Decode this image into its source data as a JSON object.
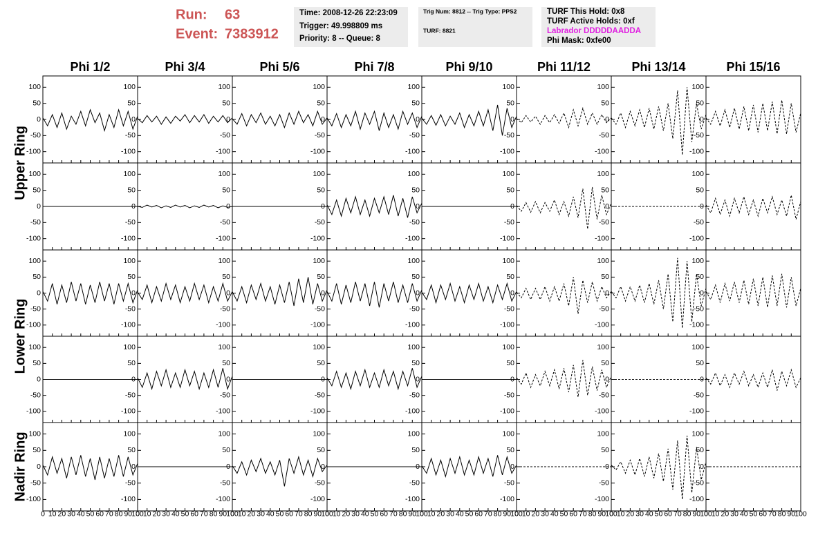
{
  "header": {
    "run_label": "Run:",
    "run": "63",
    "event_label": "Event:",
    "event": "7383912",
    "box1": [
      "Time: 2008-12-26 22:23:09",
      "Trigger: 49.998809 ms",
      "Priority: 8 -- Queue: 8"
    ],
    "box2": [
      "Trig Num: 8812 -- Trig Type: PPS2",
      "TURF: 8821"
    ],
    "box3": [
      "TURF This Hold: 0x8",
      "TURF Active Holds: 0xf",
      "Labrador DDDDDAADDA",
      "Phi Mask: 0xfe00"
    ]
  },
  "chart_data": {
    "type": "line",
    "columns": [
      "Phi 1/2",
      "Phi 3/4",
      "Phi 5/6",
      "Phi 7/8",
      "Phi 9/10",
      "Phi 11/12",
      "Phi 13/14",
      "Phi 15/16"
    ],
    "row_labels": [
      "Upper Ring",
      "Lower Ring",
      "Nadir Ring"
    ],
    "line_styles": [
      "solid",
      "solid",
      "solid",
      "solid",
      "solid",
      "dashed",
      "dashed",
      "dashed"
    ],
    "color": "#000000",
    "x": [
      0,
      5,
      10,
      15,
      20,
      25,
      30,
      35,
      40,
      45,
      50,
      55,
      60,
      65,
      70,
      75,
      80,
      85,
      90,
      95,
      100
    ],
    "xlim": [
      0,
      100
    ],
    "ylim": [
      -135,
      135
    ],
    "xticks": [
      0,
      10,
      20,
      30,
      40,
      50,
      60,
      70,
      80,
      90,
      100
    ],
    "yticks": [
      -100,
      -50,
      0,
      50,
      100
    ],
    "panels": [
      [
        [
          5,
          -20,
          15,
          -25,
          20,
          -30,
          10,
          -15,
          25,
          -20,
          30,
          -10,
          20,
          -35,
          15,
          -25,
          30,
          -20,
          25,
          -30,
          10
        ],
        [
          3,
          -10,
          12,
          -8,
          10,
          -15,
          8,
          -12,
          10,
          -5,
          15,
          -10,
          12,
          -8,
          15,
          -12,
          10,
          -8,
          12,
          -10,
          5
        ],
        [
          2,
          -15,
          18,
          -20,
          15,
          -10,
          20,
          -15,
          10,
          -20,
          15,
          -25,
          20,
          -15,
          25,
          -10,
          15,
          -20,
          25,
          -15,
          5
        ],
        [
          5,
          -20,
          18,
          -25,
          15,
          -20,
          25,
          -30,
          20,
          -15,
          25,
          -35,
          20,
          -25,
          15,
          -30,
          25,
          -15,
          20,
          -25,
          10
        ],
        [
          4,
          -15,
          12,
          -18,
          15,
          -20,
          10,
          -15,
          20,
          -25,
          15,
          -20,
          25,
          -20,
          30,
          -35,
          45,
          -50,
          35,
          -25,
          10
        ],
        [
          3,
          -10,
          12,
          -8,
          10,
          -15,
          12,
          -10,
          15,
          -12,
          20,
          -25,
          30,
          -20,
          35,
          -15,
          20,
          -15,
          15,
          -10,
          5
        ],
        [
          5,
          -15,
          20,
          -25,
          25,
          -20,
          30,
          -25,
          35,
          -30,
          40,
          -35,
          50,
          -60,
          90,
          -110,
          100,
          -70,
          50,
          -30,
          15
        ],
        [
          5,
          -15,
          25,
          -20,
          30,
          -25,
          35,
          -30,
          40,
          -35,
          45,
          -40,
          50,
          -35,
          55,
          -45,
          60,
          -45,
          50,
          -40,
          20
        ]
      ],
      [
        [
          0,
          0,
          0,
          0,
          0,
          0,
          0,
          0,
          0,
          0,
          0,
          0,
          0,
          0,
          0,
          0,
          0,
          0,
          0,
          0,
          0
        ],
        [
          0,
          -3,
          4,
          -2,
          3,
          -4,
          2,
          -3,
          4,
          -2,
          3,
          -4,
          2,
          -3,
          4,
          -2,
          3,
          -4,
          2,
          -3,
          0
        ],
        [
          0,
          0,
          0,
          0,
          0,
          0,
          0,
          0,
          0,
          0,
          0,
          0,
          0,
          0,
          0,
          0,
          0,
          0,
          0,
          0,
          0
        ],
        [
          5,
          -25,
          20,
          -30,
          25,
          -20,
          30,
          -25,
          20,
          -30,
          25,
          -20,
          30,
          -25,
          35,
          -30,
          25,
          -35,
          30,
          -20,
          10
        ],
        [
          0,
          0,
          0,
          0,
          0,
          0,
          0,
          0,
          0,
          0,
          0,
          0,
          0,
          0,
          0,
          0,
          0,
          0,
          0,
          0,
          0
        ],
        [
          3,
          -15,
          12,
          -18,
          15,
          -20,
          12,
          -15,
          20,
          -25,
          15,
          -30,
          30,
          -35,
          55,
          -70,
          60,
          -40,
          35,
          -25,
          10
        ],
        [
          0,
          0,
          0,
          0,
          0,
          0,
          0,
          0,
          0,
          0,
          0,
          0,
          0,
          0,
          0,
          0,
          0,
          0,
          0,
          0,
          0
        ],
        [
          5,
          -20,
          25,
          -25,
          20,
          -30,
          25,
          -20,
          30,
          -25,
          20,
          -30,
          25,
          -20,
          30,
          -25,
          20,
          -30,
          35,
          -40,
          15
        ]
      ],
      [
        [
          5,
          -25,
          30,
          -35,
          25,
          -30,
          35,
          -25,
          30,
          -35,
          25,
          -30,
          35,
          -25,
          30,
          -35,
          30,
          -25,
          30,
          -30,
          10
        ],
        [
          3,
          -20,
          25,
          -30,
          20,
          -25,
          30,
          -20,
          25,
          -30,
          20,
          -25,
          30,
          -20,
          25,
          -30,
          20,
          -25,
          30,
          -25,
          5
        ],
        [
          4,
          -25,
          20,
          -30,
          25,
          -20,
          30,
          -25,
          20,
          -35,
          25,
          -30,
          35,
          -40,
          45,
          -30,
          50,
          -35,
          30,
          -25,
          10
        ],
        [
          5,
          -25,
          30,
          -35,
          25,
          -30,
          35,
          -25,
          30,
          -40,
          35,
          -45,
          30,
          -25,
          35,
          -30,
          25,
          -30,
          30,
          -25,
          10
        ],
        [
          3,
          -20,
          25,
          -30,
          25,
          -20,
          30,
          -25,
          20,
          -30,
          25,
          -20,
          30,
          -25,
          20,
          -30,
          25,
          -20,
          30,
          -25,
          5
        ],
        [
          3,
          -15,
          15,
          -20,
          15,
          -20,
          20,
          -25,
          20,
          -25,
          30,
          -40,
          50,
          -65,
          40,
          -30,
          35,
          -25,
          20,
          -15,
          5
        ],
        [
          5,
          -15,
          20,
          -25,
          20,
          -25,
          25,
          -30,
          30,
          -35,
          40,
          -50,
          60,
          -90,
          110,
          -110,
          100,
          -90,
          60,
          -40,
          15
        ],
        [
          5,
          -20,
          25,
          -30,
          30,
          -25,
          35,
          -30,
          40,
          -35,
          45,
          -40,
          50,
          -45,
          55,
          -40,
          60,
          -45,
          50,
          -40,
          15
        ]
      ],
      [
        [
          0,
          0,
          0,
          0,
          0,
          0,
          0,
          0,
          0,
          0,
          0,
          0,
          0,
          0,
          0,
          0,
          0,
          0,
          0,
          0,
          0
        ],
        [
          5,
          -25,
          20,
          -30,
          25,
          -20,
          30,
          -25,
          20,
          -25,
          30,
          -20,
          25,
          -30,
          20,
          -25,
          30,
          -25,
          35,
          -30,
          10
        ],
        [
          0,
          0,
          0,
          0,
          0,
          0,
          0,
          0,
          0,
          0,
          0,
          0,
          0,
          0,
          0,
          0,
          0,
          0,
          0,
          0,
          0
        ],
        [
          5,
          -20,
          25,
          -25,
          20,
          -30,
          25,
          -20,
          30,
          -25,
          20,
          -25,
          30,
          -20,
          25,
          -30,
          25,
          -20,
          35,
          -25,
          10
        ],
        [
          0,
          0,
          0,
          0,
          0,
          0,
          0,
          0,
          0,
          0,
          0,
          0,
          0,
          0,
          0,
          0,
          0,
          0,
          0,
          0,
          0
        ],
        [
          5,
          -15,
          20,
          -25,
          15,
          -20,
          25,
          -20,
          30,
          -30,
          35,
          -40,
          45,
          -55,
          60,
          -50,
          40,
          -35,
          30,
          -25,
          10
        ],
        [
          0,
          0,
          0,
          0,
          0,
          0,
          0,
          0,
          0,
          0,
          0,
          0,
          0,
          0,
          0,
          0,
          0,
          0,
          0,
          0,
          0
        ],
        [
          5,
          -15,
          20,
          -20,
          15,
          -25,
          20,
          -15,
          25,
          -20,
          15,
          -25,
          20,
          -25,
          30,
          -35,
          25,
          -20,
          30,
          -25,
          5
        ]
      ],
      [
        [
          5,
          -25,
          30,
          -20,
          25,
          -35,
          30,
          -25,
          35,
          -30,
          25,
          -40,
          30,
          -35,
          25,
          -30,
          35,
          -30,
          30,
          -25,
          10
        ],
        [
          0,
          0,
          0,
          0,
          0,
          0,
          0,
          0,
          0,
          0,
          0,
          0,
          0,
          0,
          0,
          0,
          0,
          0,
          0,
          0,
          0
        ],
        [
          3,
          -20,
          15,
          -25,
          20,
          -15,
          25,
          -20,
          15,
          -25,
          20,
          -60,
          25,
          -20,
          30,
          -25,
          20,
          -30,
          25,
          -15,
          5
        ],
        [
          0,
          0,
          0,
          0,
          0,
          0,
          0,
          0,
          0,
          0,
          0,
          0,
          0,
          0,
          0,
          0,
          0,
          0,
          0,
          0,
          0
        ],
        [
          3,
          -20,
          25,
          -25,
          20,
          -30,
          25,
          -20,
          30,
          -25,
          20,
          -25,
          30,
          -20,
          25,
          -30,
          35,
          -25,
          30,
          -20,
          5
        ],
        [
          0,
          0,
          0,
          0,
          0,
          0,
          0,
          0,
          0,
          0,
          0,
          0,
          0,
          0,
          0,
          0,
          0,
          0,
          0,
          0,
          0
        ],
        [
          5,
          -10,
          15,
          -20,
          20,
          -25,
          25,
          -30,
          30,
          -35,
          40,
          -45,
          55,
          -70,
          80,
          -100,
          95,
          -80,
          60,
          -40,
          15
        ],
        [
          0,
          0,
          0,
          0,
          0,
          0,
          0,
          0,
          0,
          0,
          0,
          0,
          0,
          0,
          0,
          0,
          0,
          0,
          0,
          0,
          0
        ]
      ]
    ]
  }
}
